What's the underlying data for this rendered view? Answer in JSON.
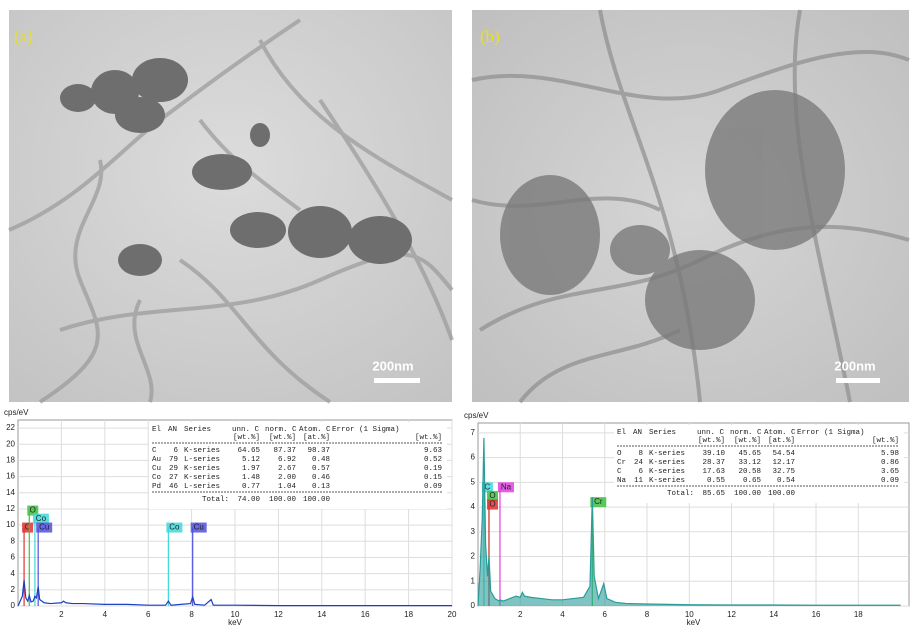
{
  "images": [
    {
      "label": "(a)",
      "scale_bar": "200nm"
    },
    {
      "label": "(b)",
      "scale_bar": "200nm"
    }
  ],
  "chart_data": [
    {
      "type": "line",
      "y_label": "cps/eV",
      "x_label": "keV",
      "xlim": [
        0,
        20
      ],
      "xticks": [
        2,
        4,
        6,
        8,
        10,
        12,
        14,
        16,
        18,
        20
      ],
      "ylim": [
        0,
        23
      ],
      "yticks": [
        0,
        2,
        4,
        6,
        8,
        10,
        12,
        14,
        16,
        18,
        20,
        22
      ],
      "grid": true,
      "series": [
        {
          "color": "#1c3fc4",
          "x": [
            0,
            0.1,
            0.2,
            0.28,
            0.36,
            0.45,
            0.52,
            0.6,
            0.7,
            0.78,
            0.85,
            0.93,
            1.0,
            1.2,
            1.5,
            2.0,
            2.1,
            2.2,
            2.5,
            3,
            4,
            5,
            6,
            6.8,
            6.93,
            7.05,
            7.5,
            7.95,
            8.05,
            8.15,
            8.6,
            8.9,
            9.0,
            10,
            12,
            14,
            16,
            18,
            20
          ],
          "values": [
            0,
            0.6,
            1.2,
            3.2,
            1.0,
            0.6,
            1.3,
            0.5,
            0.6,
            1.2,
            1.0,
            2.4,
            0.8,
            0.4,
            0.3,
            0.4,
            0.6,
            0.4,
            0.3,
            0.3,
            0.2,
            0.2,
            0.1,
            0.1,
            0.6,
            0.1,
            0.2,
            0.3,
            1.1,
            0.2,
            0.1,
            0.8,
            0.1,
            0.1,
            0.05,
            0.05,
            0.05,
            0.05,
            0.05
          ]
        }
      ],
      "markers": [
        {
          "label": "C",
          "x": 0.28,
          "y": 9.7,
          "color": "#e03030"
        },
        {
          "label": "O",
          "x": 0.52,
          "y": 11.8,
          "color": "#40c040"
        },
        {
          "label": "Co",
          "x": 0.78,
          "y": 10.8,
          "color": "#40d8d8"
        },
        {
          "label": "Cu",
          "x": 0.93,
          "y": 9.7,
          "color": "#5050e0"
        },
        {
          "label": "Co",
          "x": 6.93,
          "y": 9.7,
          "color": "#40d8d8"
        },
        {
          "label": "Cu",
          "x": 8.05,
          "y": 9.7,
          "color": "#5050e0"
        }
      ],
      "table": {
        "header": [
          "El",
          "AN",
          "Series",
          "unn. C",
          "norm. C",
          "Atom. C",
          "Error (1 Sigma)"
        ],
        "units": [
          "[wt.%]",
          "[wt.%]",
          "[at.%]",
          "[wt.%]"
        ],
        "rows": [
          [
            "C",
            "6",
            "K-series",
            "64.65",
            "87.37",
            "98.37",
            "9.63"
          ],
          [
            "Au",
            "79",
            "L-series",
            "5.12",
            "6.92",
            "0.48",
            "0.52"
          ],
          [
            "Cu",
            "29",
            "K-series",
            "1.97",
            "2.67",
            "0.57",
            "0.19"
          ],
          [
            "Co",
            "27",
            "K-series",
            "1.48",
            "2.00",
            "0.46",
            "0.15"
          ],
          [
            "Pd",
            "46",
            "L-series",
            "0.77",
            "1.04",
            "0.13",
            "0.09"
          ]
        ],
        "total": [
          "Total:",
          "74.00",
          "100.00",
          "100.00"
        ]
      }
    },
    {
      "type": "area",
      "y_label": "cps/eV",
      "x_label": "keV",
      "xlim": [
        0,
        20.4
      ],
      "xticks": [
        2,
        4,
        6,
        8,
        10,
        12,
        14,
        16,
        18
      ],
      "ylim": [
        0,
        7.4
      ],
      "yticks": [
        0,
        1,
        2,
        3,
        4,
        5,
        6,
        7
      ],
      "grid": true,
      "series": [
        {
          "color": "#2a9d9a",
          "x": [
            0,
            0.1,
            0.2,
            0.28,
            0.36,
            0.45,
            0.52,
            0.6,
            0.8,
            1.0,
            1.04,
            1.2,
            1.5,
            1.8,
            2.0,
            2.1,
            2.2,
            2.5,
            3,
            3.5,
            4,
            4.5,
            5.0,
            5.3,
            5.41,
            5.5,
            5.7,
            5.95,
            6.1,
            6.5,
            7,
            8,
            10,
            12,
            14,
            16,
            18,
            20
          ],
          "values": [
            0,
            1.5,
            3.5,
            6.8,
            2.5,
            1.2,
            2.0,
            0.6,
            0.3,
            0.2,
            0.25,
            0.2,
            0.3,
            0.4,
            0.35,
            0.55,
            0.4,
            0.35,
            0.3,
            0.25,
            0.25,
            0.3,
            0.35,
            0.8,
            4.4,
            1.2,
            0.3,
            0.9,
            0.3,
            0.15,
            0.1,
            0.08,
            0.05,
            0.04,
            0.04,
            0.03,
            0.03,
            0.03
          ]
        }
      ],
      "markers": [
        {
          "label": "C",
          "x": 0.28,
          "y": 4.8,
          "color": "#40d8d8"
        },
        {
          "label": "O",
          "x": 0.52,
          "y": 4.45,
          "color": "#40c040"
        },
        {
          "label": "O",
          "x": 0.52,
          "y": 4.1,
          "color": "#e03030"
        },
        {
          "label": "Na",
          "x": 1.04,
          "y": 4.8,
          "color": "#e040e0"
        },
        {
          "label": "Cr",
          "x": 5.41,
          "y": 4.2,
          "color": "#40c040"
        }
      ],
      "table": {
        "header": [
          "El",
          "AN",
          "Series",
          "unn. C",
          "norm. C",
          "Atom. C",
          "Error (1 Sigma)"
        ],
        "units": [
          "[wt.%]",
          "[wt.%]",
          "[at.%]",
          "[wt.%]"
        ],
        "rows": [
          [
            "O",
            "8",
            "K-series",
            "39.10",
            "45.65",
            "54.54",
            "5.98"
          ],
          [
            "Cr",
            "24",
            "K-series",
            "28.37",
            "33.12",
            "12.17",
            "0.86"
          ],
          [
            "C",
            "6",
            "K-series",
            "17.63",
            "20.58",
            "32.75",
            "3.65"
          ],
          [
            "Na",
            "11",
            "K-series",
            "0.55",
            "0.65",
            "0.54",
            "0.09"
          ]
        ],
        "total": [
          "Total:",
          "85.65",
          "100.00",
          "100.00"
        ]
      }
    }
  ]
}
